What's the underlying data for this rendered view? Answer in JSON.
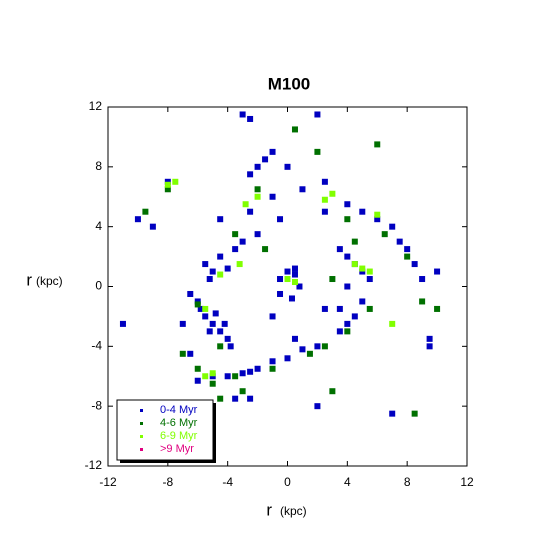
{
  "chart_data": {
    "type": "scatter",
    "title": "M100",
    "xlabel": "r",
    "xlabel_unit": "(kpc)",
    "ylabel": "r",
    "ylabel_unit": "(kpc)",
    "xlim": [
      -12,
      12
    ],
    "ylim": [
      -12,
      12
    ],
    "xticks": [
      -12,
      -8,
      -4,
      0,
      4,
      8,
      12
    ],
    "yticks": [
      -12,
      -8,
      -4,
      0,
      4,
      8,
      12
    ],
    "grid": false,
    "legend": "lower left",
    "series": [
      {
        "name": "0-4 Myr",
        "color": "#0000c0",
        "x": [
          -0.5,
          0.5,
          0.8,
          0.3,
          -0.5,
          0,
          0.5,
          -6.5,
          -6,
          -5.5,
          -5,
          -4.5,
          -4,
          -4.8,
          -5.2,
          -4.2,
          -3.8,
          -5.8,
          -5.5,
          -5,
          -4.5,
          -4,
          -3.5,
          -5.2,
          -4.5,
          -3,
          -2,
          -2.5,
          -1,
          -1.5,
          -1,
          0,
          1,
          -3,
          -2.5,
          2,
          -2,
          -2.5,
          4,
          5,
          6,
          7,
          7.5,
          8,
          8.5,
          9,
          3.5,
          4,
          4.5,
          5,
          5.5,
          4,
          5,
          4.5,
          4,
          3.5,
          -5,
          -4,
          -3,
          -2,
          -1,
          0,
          1,
          2,
          -6,
          -2.5,
          -10,
          -9,
          -11,
          -6.5,
          -3.5,
          -2.5,
          2,
          7,
          9.5,
          9.5,
          10,
          2.5,
          3.5,
          -8,
          -1,
          -0.5,
          2.5,
          2.5,
          0.5,
          -7
        ],
        "values": [
          0.5,
          0.8,
          0,
          -0.8,
          -0.5,
          1,
          1.2,
          -0.5,
          -1,
          -2,
          -2.5,
          -3,
          -3.5,
          -1.8,
          -3,
          -2.5,
          -4,
          -1.5,
          1.5,
          1,
          2,
          1.2,
          2.5,
          0.5,
          4.5,
          3,
          3.5,
          5,
          6,
          8.5,
          9,
          8,
          6.5,
          11.5,
          11.2,
          11.5,
          8,
          7.5,
          5.5,
          5,
          4.5,
          4,
          3,
          2.5,
          1.5,
          0.5,
          2.5,
          2,
          1.5,
          1,
          0.5,
          0,
          -1,
          -2,
          -2.5,
          -3,
          -6,
          -6,
          -5.8,
          -5.5,
          -5,
          -4.8,
          -4.2,
          -4,
          -6.3,
          -5.7,
          4.5,
          4,
          -2.5,
          -4.5,
          -7.5,
          -7.5,
          -8,
          -8.5,
          -4,
          -3.5,
          1,
          -1.5,
          -1.5,
          7,
          -2,
          4.5,
          7,
          5,
          -3.5,
          -2.5
        ]
      },
      {
        "name": "4-6 Myr",
        "color": "#007000",
        "x": [
          -6,
          -4.5,
          -5,
          -3.5,
          -1,
          1.5,
          2.5,
          4,
          6.5,
          8,
          9,
          10,
          -3.5,
          -8,
          -9.5,
          -3,
          -4.5,
          4,
          5.5,
          2,
          6,
          -6,
          -7,
          3,
          8.5,
          -1.5,
          0.5,
          -2,
          4.5,
          3
        ],
        "values": [
          -1.2,
          -4,
          -6.5,
          -6,
          -5.5,
          -4.5,
          -4,
          4.5,
          3.5,
          2,
          -1,
          -1.5,
          3.5,
          6.5,
          5,
          -7,
          -7.5,
          -3,
          -1.5,
          9,
          9.5,
          -5.5,
          -4.5,
          -7,
          -8.5,
          2.5,
          10.5,
          6.5,
          3,
          0.5
        ]
      },
      {
        "name": "6-9 Myr",
        "color": "#80ff00",
        "x": [
          -5,
          -5.5,
          -7.5,
          -8,
          -2,
          -2.8,
          2.5,
          3,
          4.5,
          5,
          5.5,
          0,
          0.5,
          -5.5,
          -4.5,
          6,
          7,
          -3.2
        ],
        "values": [
          -5.8,
          -6,
          7,
          6.8,
          6,
          5.5,
          5.8,
          6.2,
          1.5,
          1.2,
          1,
          0.5,
          0.3,
          -1.5,
          0.8,
          4.8,
          -2.5,
          1.5
        ]
      },
      {
        "name": ">9 Myr",
        "color": "#e0007f",
        "x": [],
        "values": []
      }
    ]
  }
}
